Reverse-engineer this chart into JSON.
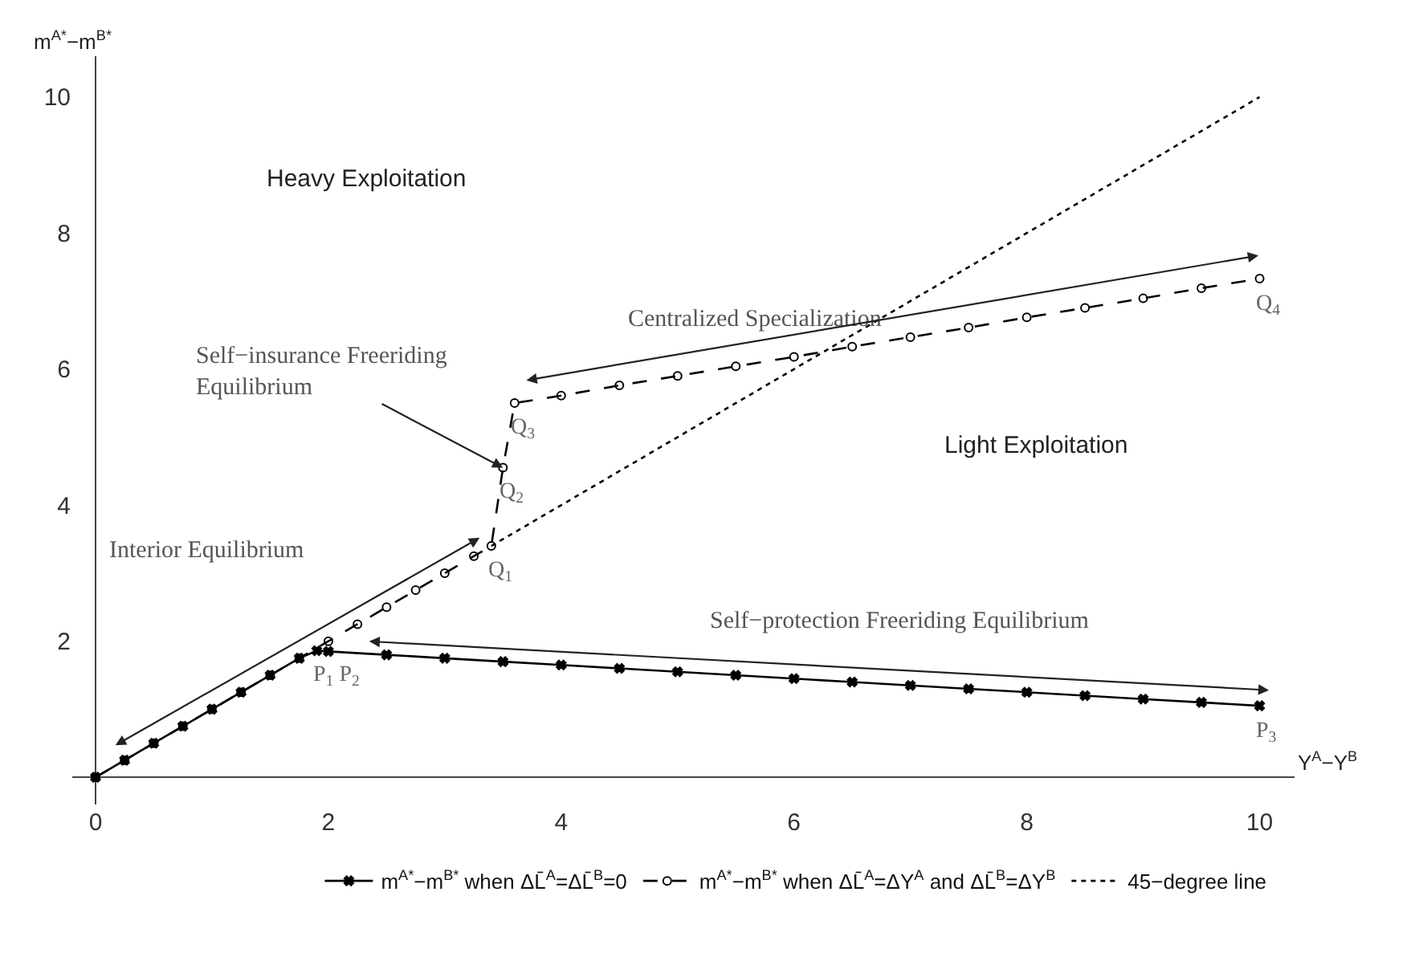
{
  "chart_data": {
    "type": "line",
    "xlabel": "Y$^{A}$−Y$^{B}$",
    "ylabel": "m$^{A*}$−m$^{B*}$",
    "xlim": [
      -0.2,
      10.3
    ],
    "ylim": [
      -0.4,
      10.6
    ],
    "xticks": [
      0,
      2,
      4,
      6,
      8,
      10
    ],
    "yticks": [
      2,
      4,
      6,
      8,
      10
    ],
    "legend": "bottom",
    "series": [
      {
        "name": "m$^{A*}$−m$^{B*}$ when ΔL̄$^{A}$=ΔL̄$^{B}$=0",
        "color": "#000000",
        "marker": "cross",
        "line_style": "solid",
        "x": [
          0,
          0.25,
          0.5,
          0.75,
          1,
          1.25,
          1.5,
          1.75,
          1.9,
          2,
          2.5,
          3,
          3.5,
          4,
          4.5,
          5,
          5.5,
          6,
          6.5,
          7,
          7.5,
          8,
          8.5,
          9,
          9.5,
          10
        ],
        "values": [
          0,
          0.25,
          0.5,
          0.75,
          1,
          1.25,
          1.5,
          1.75,
          1.86,
          1.85,
          1.8,
          1.75,
          1.7,
          1.65,
          1.6,
          1.55,
          1.5,
          1.45,
          1.4,
          1.35,
          1.3,
          1.25,
          1.2,
          1.15,
          1.1,
          1.05
        ]
      },
      {
        "name": "m$^{A*}$−m$^{B*}$ when ΔL̄$^{A}$=ΔY$^{A}$ and ΔL̄$^{B}$=ΔY$^{B}$",
        "color": "#000000",
        "marker": "circle",
        "line_style": "dashed",
        "x": [
          0,
          0.25,
          0.5,
          0.75,
          1,
          1.25,
          1.5,
          1.75,
          2,
          2.25,
          2.5,
          2.75,
          3,
          3.25,
          3.4,
          3.5,
          3.6,
          4,
          4.5,
          5,
          5.5,
          6,
          6.5,
          7,
          7.5,
          8,
          8.5,
          9,
          9.5,
          10
        ],
        "values": [
          0,
          0.25,
          0.5,
          0.75,
          1,
          1.25,
          1.5,
          1.75,
          2,
          2.25,
          2.5,
          2.75,
          3,
          3.25,
          3.4,
          4.55,
          5.5,
          5.61,
          5.76,
          5.9,
          6.04,
          6.18,
          6.33,
          6.47,
          6.61,
          6.76,
          6.9,
          7.04,
          7.19,
          7.33
        ]
      },
      {
        "name": "45−degree line",
        "color": "#000000",
        "marker": "none",
        "line_style": "dotted",
        "x": [
          3.4,
          10
        ],
        "values": [
          3.4,
          10
        ]
      }
    ],
    "annotations": [
      "Heavy Exploitation",
      "Light Exploitation",
      "Centralized Specialization",
      {
        "text": "Self−insurance Freeriding\nEquilibrium",
        "x": 3.5,
        "y": 4.55
      },
      "Interior Equilibrium",
      "Self−protection Freeriding Equilibrium",
      {
        "text": "P$_{1}$ P$_{2}$",
        "x": 1.9,
        "y": 1.86
      },
      {
        "text": "Q$_{1}$",
        "x": 3.4,
        "y": 3.4
      },
      {
        "text": "Q$_{2}$",
        "x": 3.5,
        "y": 4.55
      },
      {
        "text": "Q$_{3}$",
        "x": 3.6,
        "y": 5.5
      },
      {
        "text": "Q$_{4}$",
        "x": 10,
        "y": 7.33
      },
      {
        "text": "P$_{3}$",
        "x": 10,
        "y": 1.05
      }
    ]
  }
}
